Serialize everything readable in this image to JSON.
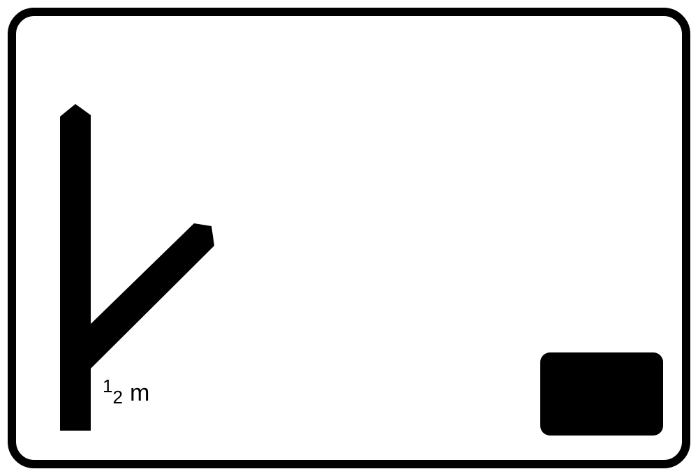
{
  "sign": {
    "border_color": "#000000",
    "background_color": "#ffffff",
    "symbol_color": "#000000",
    "symbol": "side-road-junction-right",
    "distance": {
      "numerator": "1",
      "denominator": "2",
      "unit": "m"
    },
    "plate_color": "#000000"
  }
}
